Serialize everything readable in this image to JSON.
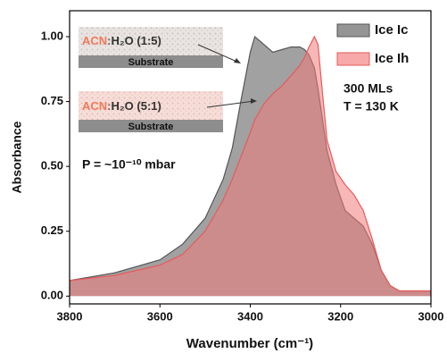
{
  "chart_data": {
    "type": "area",
    "xlabel": "Wavenumber (cm⁻¹)",
    "ylabel": "Absorbance",
    "x": [
      3800,
      3700,
      3600,
      3550,
      3500,
      3460,
      3440,
      3420,
      3400,
      3390,
      3370,
      3350,
      3330,
      3310,
      3290,
      3280,
      3270,
      3258,
      3250,
      3240,
      3230,
      3210,
      3190,
      3170,
      3150,
      3130,
      3110,
      3090,
      3070,
      3000
    ],
    "series": [
      {
        "name": "Ice Ic",
        "color": "#8a8a8a",
        "values": [
          0.06,
          0.09,
          0.14,
          0.2,
          0.3,
          0.45,
          0.57,
          0.76,
          0.94,
          1.0,
          0.97,
          0.94,
          0.95,
          0.96,
          0.96,
          0.95,
          0.93,
          0.88,
          0.8,
          0.68,
          0.56,
          0.43,
          0.33,
          0.3,
          0.27,
          0.2,
          0.1,
          0.04,
          0.02,
          0.02
        ]
      },
      {
        "name": "Ice Ih",
        "color": "#f27b7b",
        "values": [
          0.06,
          0.08,
          0.12,
          0.16,
          0.25,
          0.37,
          0.45,
          0.54,
          0.63,
          0.68,
          0.74,
          0.78,
          0.81,
          0.85,
          0.89,
          0.92,
          0.96,
          1.0,
          0.97,
          0.78,
          0.6,
          0.48,
          0.43,
          0.39,
          0.33,
          0.22,
          0.1,
          0.04,
          0.02,
          0.02
        ]
      }
    ],
    "xlim": [
      3800,
      3000
    ],
    "xticks": [
      3800,
      3600,
      3400,
      3200,
      3000
    ],
    "ylim": [
      -0.03,
      1.1
    ],
    "yticks": [
      {
        "value": 0,
        "label": "0.00"
      },
      {
        "value": 0.25,
        "label": "0.25"
      },
      {
        "value": 0.5,
        "label": "0.50"
      },
      {
        "value": 0.75,
        "label": "0.75"
      },
      {
        "value": 1,
        "label": "1.00"
      }
    ],
    "legend": "upper right",
    "annotations": {
      "insets": [
        {
          "solvent": "ACN",
          "separator": ":",
          "mixture": "H₂O (1:5)",
          "substrate": "Substrate"
        },
        {
          "solvent": "ACN",
          "separator": ":",
          "mixture": "H₂O (5:1)",
          "substrate": "Substrate"
        }
      ],
      "thickness": "300 MLs",
      "temperature": "T = 130 K",
      "pressure": "P = ~10⁻¹⁰ mbar"
    }
  }
}
